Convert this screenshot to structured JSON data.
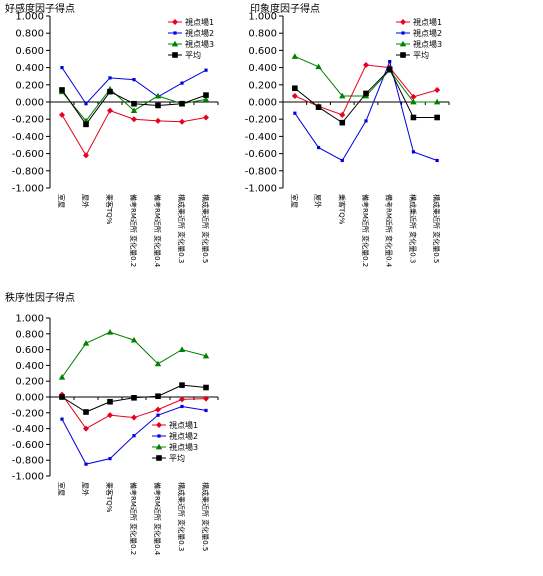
{
  "colors": {
    "series1": "#e8001c",
    "series2": "#0000e0",
    "series3": "#008000",
    "average": "#000000"
  },
  "chart_data": [
    {
      "type": "line",
      "title": "好感度因子得点",
      "categories": [
        "室屋",
        "屋外",
        "乗客TQ%",
        "備考RM近所 変化量0.2",
        "備考RM近所 変化量0.4",
        "構成乗近所 変化量0.3",
        "構成乗近所 変化量0.5"
      ],
      "yticks": [
        "1.000",
        "0.800",
        "0.600",
        "0.400",
        "0.200",
        "0.000",
        "-0.200",
        "-0.400",
        "-0.600",
        "-0.800",
        "-1.000"
      ],
      "ylim": [
        -1,
        1
      ],
      "legend": "top-right",
      "series": [
        {
          "name": "視点場1",
          "marker": "diamond",
          "values": [
            -0.15,
            -0.62,
            -0.1,
            -0.2,
            -0.22,
            -0.23,
            -0.18
          ]
        },
        {
          "name": "視点場2",
          "marker": "square-small",
          "values": [
            0.4,
            -0.02,
            0.28,
            0.26,
            0.06,
            0.22,
            0.37
          ]
        },
        {
          "name": "視点場3",
          "marker": "triangle",
          "values": [
            0.12,
            -0.22,
            0.15,
            -0.1,
            0.07,
            -0.02,
            0.03
          ]
        },
        {
          "name": "平均",
          "marker": "square",
          "values": [
            0.14,
            -0.26,
            0.12,
            -0.02,
            -0.04,
            -0.02,
            0.08
          ]
        }
      ]
    },
    {
      "type": "line",
      "title": "印象度因子得点",
      "categories": [
        "室屋",
        "屋外",
        "乗客TQ%",
        "備考RM近所 変化量0.2",
        "備考RM近所 変化量0.4",
        "構成乗近所 変化量0.3",
        "構成乗近所 変化量0.5"
      ],
      "yticks": [
        "1.000",
        "0.800",
        "0.600",
        "0.400",
        "0.200",
        "0.000",
        "-0.200",
        "-0.400",
        "-0.600",
        "-0.800",
        "-1.000"
      ],
      "ylim": [
        -1,
        1
      ],
      "legend": "top-right",
      "series": [
        {
          "name": "視点場1",
          "marker": "diamond",
          "values": [
            0.07,
            -0.05,
            -0.15,
            0.43,
            0.4,
            0.06,
            0.14
          ]
        },
        {
          "name": "視点場2",
          "marker": "square-small",
          "values": [
            -0.13,
            -0.53,
            -0.68,
            -0.22,
            0.47,
            -0.58,
            -0.68
          ]
        },
        {
          "name": "視点場3",
          "marker": "triangle",
          "values": [
            0.53,
            0.41,
            0.07,
            0.07,
            0.37,
            0.0,
            0.0
          ]
        },
        {
          "name": "平均",
          "marker": "square",
          "values": [
            0.16,
            -0.06,
            -0.24,
            0.1,
            0.38,
            -0.18,
            -0.18
          ]
        }
      ]
    },
    {
      "type": "line",
      "title": "秩序性因子得点",
      "categories": [
        "室屋",
        "屋外",
        "乗客TQ%",
        "備考RM近所 変化量0.2",
        "備考RM近所 変化量0.4",
        "構成乗近所 変化量0.3",
        "構成乗近所 変化量0.5"
      ],
      "yticks": [
        "1.000",
        "0.800",
        "0.600",
        "0.400",
        "0.200",
        "0.000",
        "-0.200",
        "-0.400",
        "-0.600",
        "-0.800",
        "-1.000"
      ],
      "ylim": [
        -1,
        1
      ],
      "legend": "bottom-right",
      "series": [
        {
          "name": "視点場1",
          "marker": "diamond",
          "values": [
            0.03,
            -0.4,
            -0.23,
            -0.26,
            -0.16,
            -0.03,
            -0.02
          ]
        },
        {
          "name": "視点場2",
          "marker": "square-small",
          "values": [
            -0.28,
            -0.85,
            -0.78,
            -0.49,
            -0.23,
            -0.12,
            -0.17
          ]
        },
        {
          "name": "視点場3",
          "marker": "triangle",
          "values": [
            0.25,
            0.68,
            0.82,
            0.72,
            0.42,
            0.6,
            0.52
          ]
        },
        {
          "name": "平均",
          "marker": "square",
          "values": [
            0.0,
            -0.19,
            -0.06,
            -0.01,
            0.01,
            0.15,
            0.12
          ]
        }
      ]
    }
  ]
}
